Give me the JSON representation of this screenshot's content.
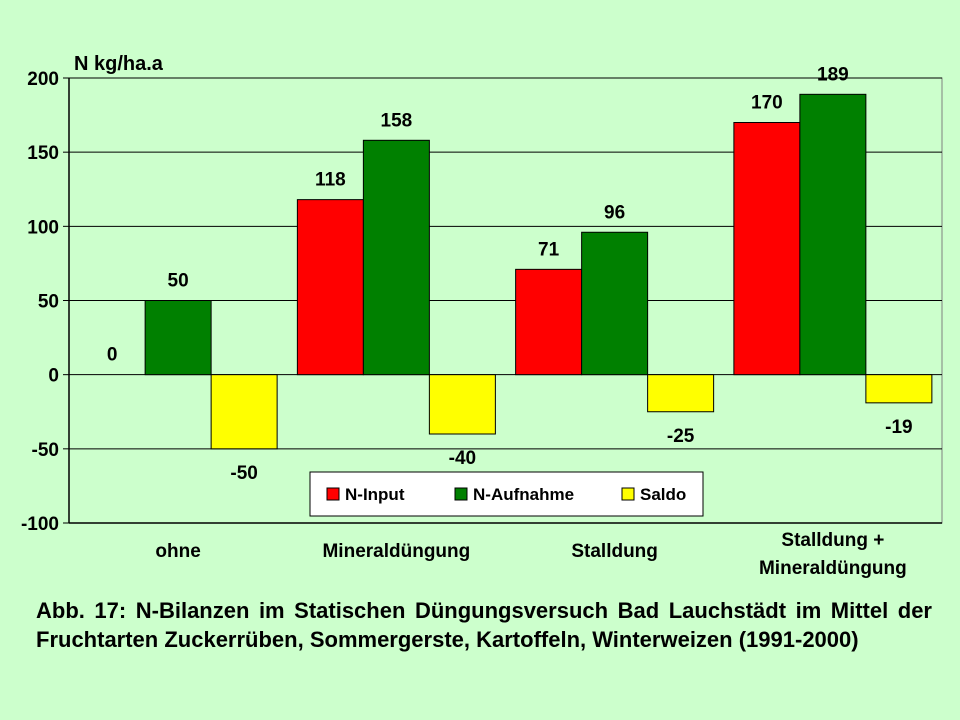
{
  "chart_data": {
    "type": "bar",
    "ylabel": "N kg/ha.a",
    "ylim": [
      -100,
      200
    ],
    "yticks": [
      -100,
      -50,
      0,
      50,
      100,
      150,
      200
    ],
    "grid": true,
    "categories": [
      "ohne",
      "Mineraldüngung",
      "Stalldung",
      "Stalldung + Mineraldüngung"
    ],
    "category_lines": [
      [
        "ohne"
      ],
      [
        "Mineraldüngung"
      ],
      [
        "Stalldung"
      ],
      [
        "Stalldung +",
        "Mineraldüngung"
      ]
    ],
    "series": [
      {
        "name": "N-Input",
        "color": "#ff0000",
        "values": [
          0,
          118,
          71,
          170
        ],
        "labels": [
          "0",
          "118",
          "71",
          "170"
        ]
      },
      {
        "name": "N-Aufnahme",
        "color": "#008000",
        "values": [
          50,
          158,
          96,
          189
        ],
        "labels": [
          "50",
          "158",
          "96",
          "189"
        ]
      },
      {
        "name": "Saldo",
        "color": "#ffff00",
        "values": [
          -50,
          -40,
          -25,
          -19
        ],
        "labels": [
          "-50",
          "-40",
          "-25",
          "-19"
        ]
      }
    ],
    "legend_position": "bottom-center inside plot"
  },
  "caption": "Abb. 17: N-Bilanzen im Statischen Düngungsversuch Bad Lauchstädt im Mittel der Fruchtarten Zuckerrüben, Sommergerste, Kartoffeln, Winterweizen (1991-2000)"
}
